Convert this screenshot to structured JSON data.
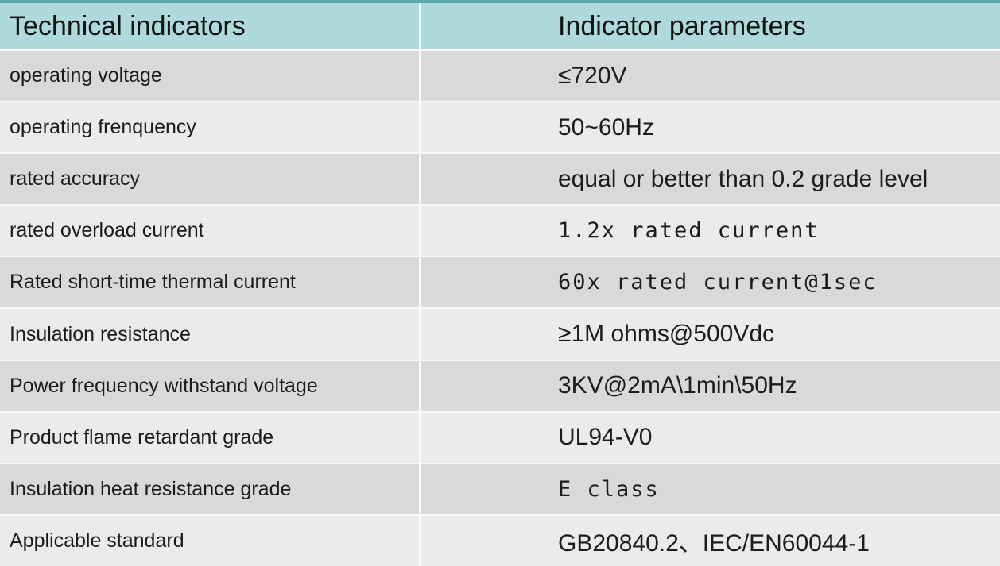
{
  "table": {
    "columns": [
      {
        "label": "Technical indicators"
      },
      {
        "label": "Indicator parameters"
      }
    ],
    "rows": [
      {
        "label": "operating voltage",
        "value": "≤720V"
      },
      {
        "label": "operating frenquency",
        "value": "50~60Hz"
      },
      {
        "label": "rated accuracy",
        "value": "equal or better than 0.2 grade level"
      },
      {
        "label": "rated overload current",
        "value": "1.2x rated current"
      },
      {
        "label": "Rated short-time thermal current",
        "value": "60x rated current@1sec"
      },
      {
        "label": "Insulation resistance",
        "value": "≥1M ohms@500Vdc"
      },
      {
        "label": "Power frequency withstand voltage",
        "value": "3KV@2mA\\1min\\50Hz"
      },
      {
        "label": "Product flame retardant grade",
        "value": "UL94-V0"
      },
      {
        "label": "Insulation heat resistance grade",
        "value": "E class"
      },
      {
        "label": "Applicable standard",
        "value": "GB20840.2、IEC/EN60044-1"
      }
    ],
    "colors": {
      "top_strip": "#58A9AD",
      "header_bg": "#AEDADD",
      "row_dark": "#D9D9D9",
      "row_light": "#EBEBEB",
      "separator": "#F8F8F8",
      "text": "#1B1B1B"
    }
  }
}
